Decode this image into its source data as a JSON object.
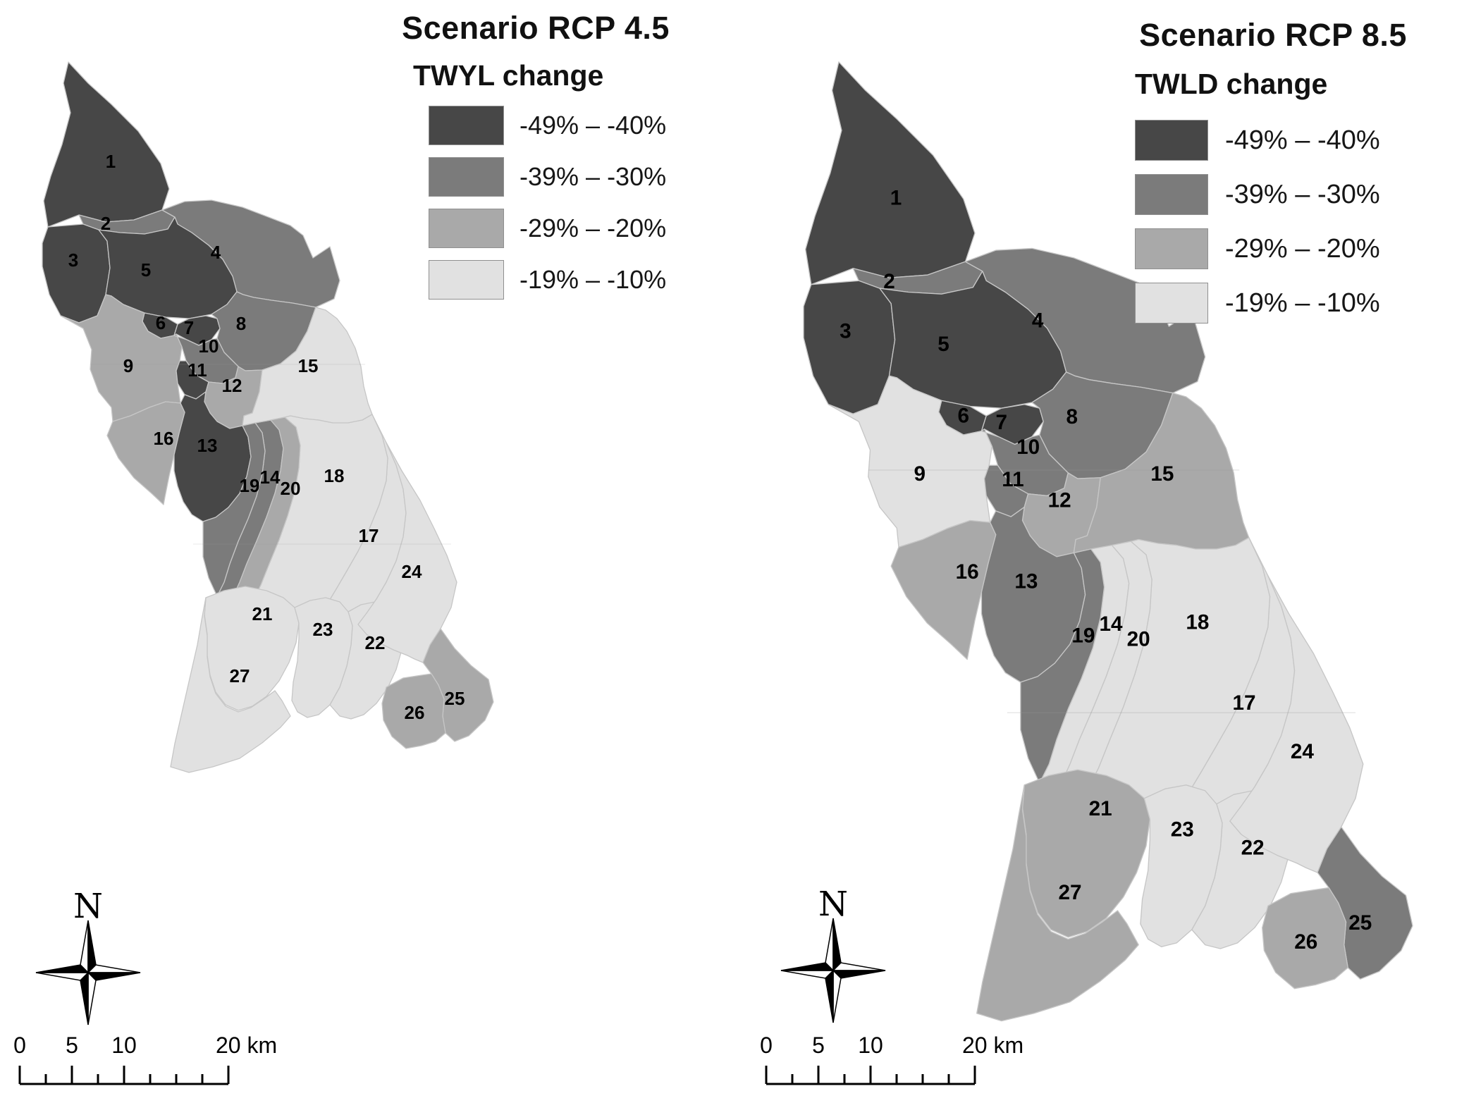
{
  "figure": {
    "panels": [
      {
        "id": "rcp45",
        "title": "Scenario RCP 4.5",
        "legend_title": "TWYL change",
        "basin_classes": {
          "1": 0,
          "2": 1,
          "3": 0,
          "4": 1,
          "5": 0,
          "6": 0,
          "7": 0,
          "8": 1,
          "9": 2,
          "10": 1,
          "11": 0,
          "12": 2,
          "13": 0,
          "14": 1,
          "15": 3,
          "16": 2,
          "17": 3,
          "18": 3,
          "19": 1,
          "20": 2,
          "21": 3,
          "22": 3,
          "23": 3,
          "24": 3,
          "25": 2,
          "26": 2,
          "27": 3
        }
      },
      {
        "id": "rcp85",
        "title": "Scenario RCP 8.5",
        "legend_title": "TWLD change",
        "basin_classes": {
          "1": 0,
          "2": 1,
          "3": 0,
          "4": 1,
          "5": 0,
          "6": 0,
          "7": 0,
          "8": 1,
          "9": 3,
          "10": 1,
          "11": 1,
          "12": 2,
          "13": 1,
          "14": 3,
          "15": 2,
          "16": 2,
          "17": 3,
          "18": 3,
          "19": 1,
          "20": 3,
          "21": 2,
          "22": 3,
          "23": 3,
          "24": 3,
          "25": 1,
          "26": 2,
          "27": 2
        }
      }
    ],
    "legend_items": [
      {
        "label": "-49% – -40%",
        "color": "#474747"
      },
      {
        "label": "-39% – -30%",
        "color": "#7b7b7b"
      },
      {
        "label": "-29% – -20%",
        "color": "#a9a9a9"
      },
      {
        "label": "-19% – -10%",
        "color": "#e1e1e1"
      }
    ],
    "basin_ids": [
      "1",
      "2",
      "3",
      "4",
      "5",
      "6",
      "7",
      "8",
      "9",
      "10",
      "11",
      "12",
      "13",
      "14",
      "15",
      "16",
      "17",
      "18",
      "19",
      "20",
      "21",
      "22",
      "23",
      "24",
      "25",
      "26",
      "27"
    ],
    "north_arrow_label": "N",
    "scale_bar": {
      "labels": [
        "0",
        "5",
        "10",
        "20 km"
      ]
    },
    "map_colors": {
      "boundary": "#c6c6c6",
      "outline": "#9a9a9a",
      "background": "#ffffff",
      "label": "#000000"
    }
  }
}
